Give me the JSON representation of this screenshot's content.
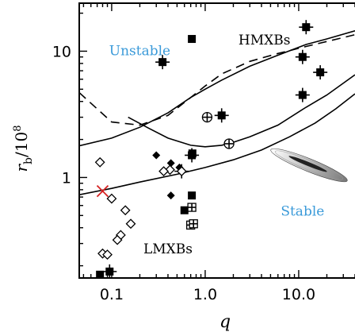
{
  "chart_data": {
    "type": "scatter",
    "xlabel": "q",
    "ylabel_main": "r",
    "ylabel_sub": "b",
    "ylabel_den": "/10",
    "ylabel_exp": "8",
    "xscale": "log",
    "yscale": "log",
    "xlim": [
      0.045,
      40
    ],
    "ylim": [
      0.16,
      24
    ],
    "xticks": [
      {
        "value": 0.1,
        "label": "0.1"
      },
      {
        "value": 1,
        "label": "1.0"
      },
      {
        "value": 10,
        "label": "10.0"
      }
    ],
    "yticks": [
      {
        "value": 1,
        "label": "1"
      },
      {
        "value": 10,
        "label": "10"
      }
    ],
    "annotations": [
      {
        "text": "Unstable",
        "x": 0.2,
        "y": 9.3,
        "color": "#3a9ad9"
      },
      {
        "text": "Stable",
        "x": 11,
        "y": 0.5,
        "color": "#3a9ad9"
      },
      {
        "text": "HMXBs",
        "x": 4.3,
        "y": 11.3,
        "color": "#000000"
      },
      {
        "text": "LMXBs",
        "x": 0.4,
        "y": 0.25,
        "color": "#000000"
      }
    ],
    "curves": [
      {
        "style": "dashed",
        "x": [
          0.045,
          0.1,
          0.2,
          0.4,
          0.7,
          1.0,
          1.5,
          3,
          6,
          12,
          40
        ],
        "y": [
          4.7,
          2.75,
          2.6,
          3.1,
          4.3,
          5.3,
          6.6,
          8.3,
          9.6,
          10.9,
          13.5
        ]
      },
      {
        "style": "solid",
        "x": [
          0.045,
          0.1,
          0.2,
          0.4,
          0.7,
          1.0,
          1.5,
          3,
          6,
          12,
          20,
          40
        ],
        "y": [
          1.78,
          2.05,
          2.5,
          3.25,
          4.3,
          5.0,
          5.9,
          7.6,
          9.3,
          11.3,
          12.5,
          14.5
        ]
      },
      {
        "style": "solid",
        "x": [
          0.15,
          0.25,
          0.4,
          0.7,
          1.0,
          1.5,
          2,
          3,
          6,
          12,
          20,
          40
        ],
        "y": [
          3.0,
          2.45,
          2.05,
          1.8,
          1.75,
          1.8,
          1.9,
          2.1,
          2.6,
          3.6,
          4.5,
          6.5
        ]
      },
      {
        "style": "solid",
        "x": [
          0.045,
          0.1,
          0.2,
          0.5,
          1.0,
          2,
          4,
          8,
          15,
          25,
          40
        ],
        "y": [
          0.73,
          0.82,
          0.92,
          1.06,
          1.2,
          1.38,
          1.65,
          2.1,
          2.7,
          3.5,
          4.6
        ]
      }
    ],
    "series": [
      {
        "marker": "filled-square",
        "points": [
          [
            0.075,
            0.17
          ],
          [
            0.72,
            12.5
          ],
          [
            0.72,
            0.72
          ],
          [
            0.73,
            1.55
          ],
          [
            0.6,
            0.55
          ]
        ]
      },
      {
        "marker": "filled-square-errorbar",
        "points": [
          [
            0.35,
            8.2
          ],
          [
            0.72,
            1.5
          ],
          [
            1.5,
            3.1
          ],
          [
            11,
            4.5
          ],
          [
            11,
            9.0
          ],
          [
            12,
            15.5
          ],
          [
            17,
            6.8
          ],
          [
            0.095,
            0.18
          ]
        ]
      },
      {
        "marker": "filled-diamond",
        "points": [
          [
            0.3,
            1.5
          ],
          [
            0.43,
            1.3
          ],
          [
            0.43,
            0.72
          ],
          [
            0.53,
            1.2
          ]
        ]
      },
      {
        "marker": "open-diamond",
        "points": [
          [
            0.075,
            1.32
          ],
          [
            0.1,
            0.68
          ],
          [
            0.14,
            0.55
          ],
          [
            0.16,
            0.43
          ],
          [
            0.125,
            0.35
          ],
          [
            0.115,
            0.32
          ],
          [
            0.08,
            0.25
          ],
          [
            0.09,
            0.245
          ],
          [
            0.42,
            1.15
          ],
          [
            0.36,
            1.12
          ]
        ]
      },
      {
        "marker": "open-square-plus",
        "points": [
          [
            0.72,
            0.58
          ],
          [
            0.7,
            0.42
          ],
          [
            0.75,
            0.43
          ]
        ]
      },
      {
        "marker": "open-diamond-errorbar",
        "points": [
          [
            0.56,
            1.12
          ]
        ]
      },
      {
        "marker": "open-circle-plus",
        "points": [
          [
            1.05,
            3.0
          ],
          [
            1.8,
            1.85
          ]
        ]
      },
      {
        "marker": "red-cross",
        "points": [
          [
            0.08,
            0.78
          ]
        ]
      }
    ]
  }
}
